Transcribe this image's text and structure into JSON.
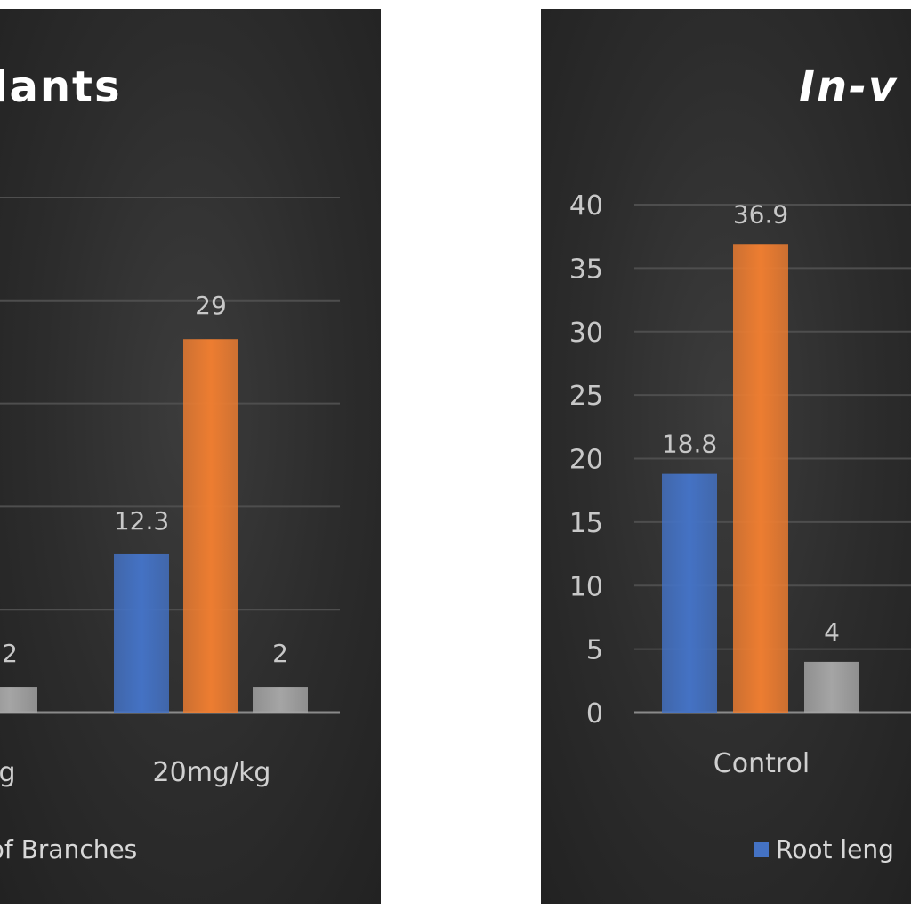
{
  "chart_data": [
    {
      "type": "bar",
      "title": "lants",
      "categories": [
        "g",
        "20mg/kg"
      ],
      "series": [
        {
          "values": [
            null,
            12.3
          ],
          "color": "#4472c4"
        },
        {
          "values": [
            null,
            29
          ],
          "color": "#ed7d31"
        },
        {
          "name": ". of Branches",
          "values": [
            2,
            2
          ],
          "color": "#a5a5a5"
        }
      ],
      "ylim": [
        0,
        40
      ],
      "grid": true,
      "legend": "bottom"
    },
    {
      "type": "bar",
      "title": "In-v",
      "categories": [
        "Control"
      ],
      "yticks": [
        "0",
        "5",
        "10",
        "15",
        "20",
        "25",
        "30",
        "35",
        "40"
      ],
      "series": [
        {
          "name": "Root leng",
          "values": [
            18.8
          ],
          "color": "#4472c4"
        },
        {
          "values": [
            36.9
          ],
          "color": "#ed7d31"
        },
        {
          "values": [
            4
          ],
          "color": "#a5a5a5"
        }
      ],
      "data_labels": [
        "18.8",
        "36.9",
        "4"
      ],
      "ylim": [
        0,
        40
      ],
      "grid": true,
      "legend": "bottom"
    }
  ],
  "left_labels": {
    "b1": "2",
    "b2": "12.3",
    "b3": "29",
    "b4": "2"
  }
}
